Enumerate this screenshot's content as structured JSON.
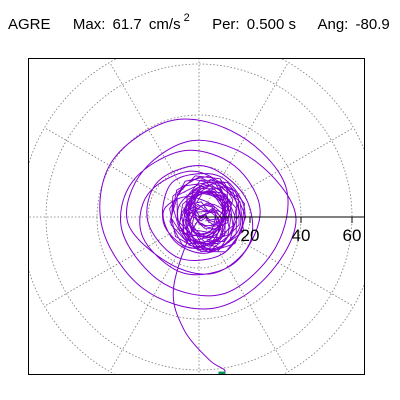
{
  "header": {
    "station": "AGRE",
    "max_label": "Max:",
    "max_value": "61.7",
    "max_unit": "cm/s",
    "max_exp": "2",
    "per_label": "Per:",
    "per_value": "0.500 s",
    "ang_label": "Ang:",
    "ang_value": "-80.9"
  },
  "chart_data": {
    "type": "polar-trajectory",
    "radial_ticks": [
      20,
      40,
      60
    ],
    "tick_labels": [
      "20",
      "40",
      "60"
    ],
    "rmax": 70,
    "angular_grid_step_deg": 30,
    "grid": true,
    "series": [
      {
        "color": "#8000d0",
        "points": [
          [
            0,
            0
          ],
          [
            6,
            4
          ],
          [
            -5,
            8
          ],
          [
            -14,
            2
          ],
          [
            -9,
            -10
          ],
          [
            4,
            -14
          ],
          [
            16,
            -4
          ],
          [
            12,
            10
          ],
          [
            -3,
            18
          ],
          [
            -20,
            9
          ],
          [
            -22,
            -8
          ],
          [
            -6,
            -22
          ],
          [
            14,
            -18
          ],
          [
            24,
            2
          ],
          [
            14,
            20
          ],
          [
            -6,
            26
          ],
          [
            -26,
            14
          ],
          [
            -30,
            -6
          ],
          [
            -14,
            -26
          ],
          [
            10,
            -30
          ],
          [
            30,
            -12
          ],
          [
            34,
            12
          ],
          [
            16,
            32
          ],
          [
            -10,
            38
          ],
          [
            -34,
            22
          ],
          [
            -38,
            -4
          ],
          [
            -22,
            -28
          ],
          [
            4,
            -36
          ],
          [
            26,
            -24
          ],
          [
            38,
            0
          ],
          [
            22,
            22
          ],
          [
            -2,
            30
          ],
          [
            -22,
            18
          ],
          [
            -28,
            -2
          ],
          [
            -12,
            -18
          ],
          [
            6,
            -22
          ],
          [
            20,
            -10
          ],
          [
            18,
            8
          ],
          [
            2,
            20
          ],
          [
            -16,
            14
          ],
          [
            -20,
            -2
          ],
          [
            -8,
            -16
          ],
          [
            10,
            -14
          ],
          [
            18,
            2
          ],
          [
            8,
            16
          ],
          [
            -10,
            14
          ],
          [
            -14,
            -2
          ],
          [
            -4,
            -12
          ],
          [
            8,
            -8
          ],
          [
            10,
            4
          ],
          [
            0,
            10
          ],
          [
            -8,
            4
          ],
          [
            -6,
            -6
          ],
          [
            4,
            -6
          ],
          [
            6,
            2
          ],
          [
            -2,
            -4
          ],
          [
            -10,
            -28
          ],
          [
            -6,
            -44
          ],
          [
            4,
            -56
          ],
          [
            10,
            -60
          ],
          [
            9,
            -62
          ]
        ]
      }
    ],
    "end_marker": {
      "color": "#009060",
      "point": [
        9,
        -62
      ]
    }
  }
}
